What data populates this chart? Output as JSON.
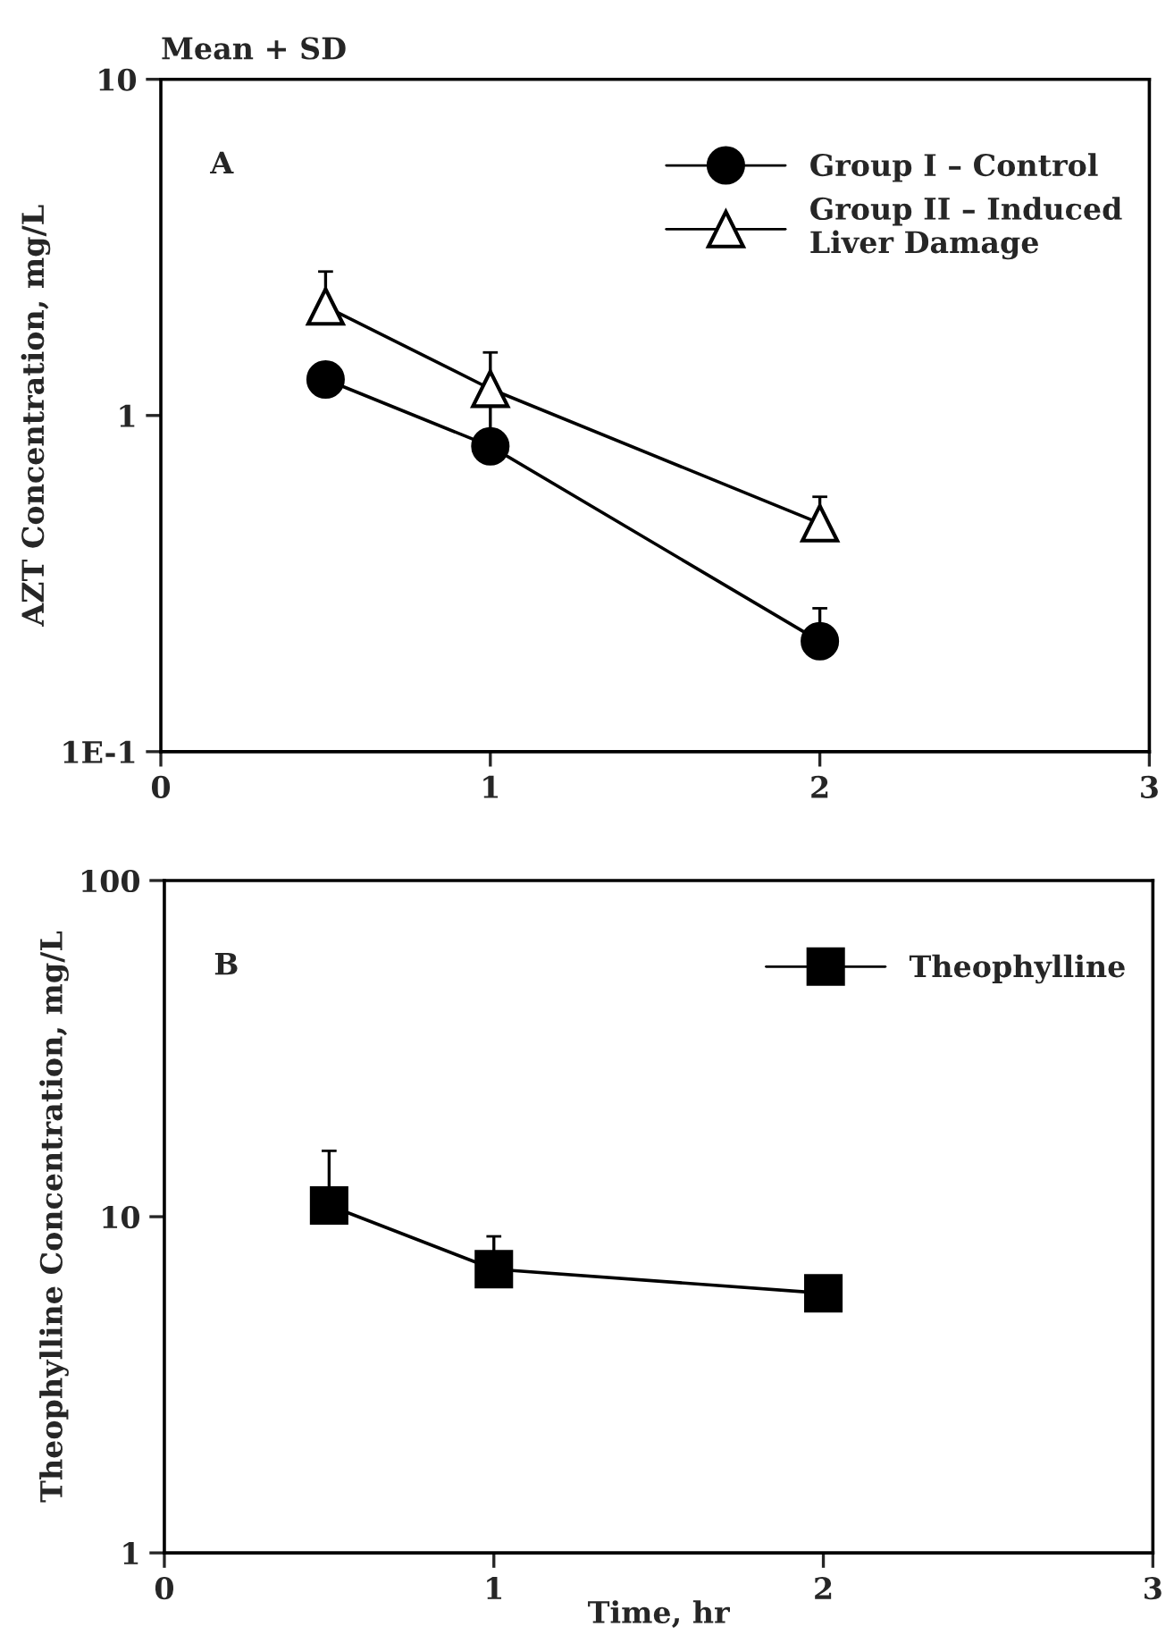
{
  "chart_data": [
    {
      "type": "line",
      "log": "y",
      "x": [
        0.5,
        1,
        2
      ],
      "ylabel": "AZT Concentration, mg/L",
      "annotations": [
        "Mean + SD",
        "A"
      ],
      "xlim": [
        0,
        3
      ],
      "xticks": [
        0,
        1,
        2,
        3
      ],
      "ylim": [
        0.1,
        10
      ],
      "yticks": [
        {
          "value": 0.1,
          "label": "1E-1"
        },
        1,
        10
      ],
      "legend": "top right",
      "grid": false,
      "series": [
        {
          "name": "Group I – Control",
          "color": "#000000",
          "marker": "circle",
          "values": [
            1.28,
            0.81,
            0.213
          ],
          "errors": [
            null,
            [
              0.81,
              1.09
            ],
            [
              0.213,
              0.267
            ]
          ]
        },
        {
          "name": "Group II – Induced\nLiver Damage",
          "color": "#000000",
          "marker": "triangle",
          "values": [
            2.11,
            1.2,
            0.478
          ],
          "errors": [
            [
              2.11,
              2.68
            ],
            [
              1.2,
              1.54
            ],
            [
              0.478,
              0.573
            ]
          ]
        }
      ]
    },
    {
      "type": "line",
      "log": "y",
      "x": [
        0.5,
        1,
        2
      ],
      "ylabel": "Theophylline Concentration, mg/L",
      "xlabel": "Time, hr",
      "annotations": [
        "B"
      ],
      "xlim": [
        0,
        3
      ],
      "xticks": [
        0,
        1,
        2,
        3
      ],
      "ylim": [
        1,
        100
      ],
      "yticks": [
        1,
        10,
        100
      ],
      "legend": "top right",
      "grid": false,
      "series": [
        {
          "name": "Theophylline",
          "color": "#000000",
          "marker": "square",
          "values": [
            10.8,
            6.98,
            5.92
          ],
          "errors": [
            [
              10.8,
              15.7
            ],
            [
              6.98,
              8.74
            ],
            null
          ]
        }
      ]
    }
  ]
}
